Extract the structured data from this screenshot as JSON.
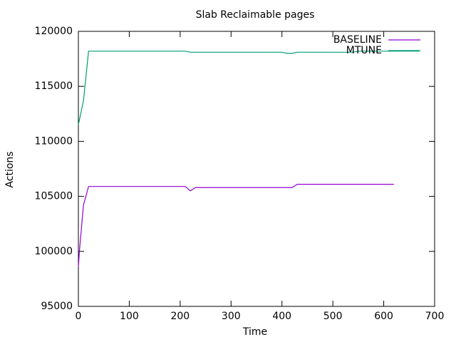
{
  "chart_data": {
    "type": "line",
    "title": "Slab Reclaimable pages",
    "x_label": "Time",
    "y_label": "Actions",
    "series": [
      {
        "name": "BASELINE",
        "color": "#9400d3",
        "x": [
          0,
          2,
          10,
          20,
          210,
          220,
          230,
          420,
          430,
          620
        ],
        "values": [
          98600,
          100000,
          104200,
          105900,
          105900,
          105500,
          105800,
          105800,
          106100,
          106100
        ]
      },
      {
        "name": "MTUNE",
        "color": "#009e73",
        "x": [
          0,
          10,
          20,
          210,
          220,
          400,
          410,
          420,
          430,
          540,
          550,
          670
        ],
        "values": [
          111500,
          113700,
          118200,
          118200,
          118100,
          118100,
          118000,
          118000,
          118100,
          118100,
          118200,
          118200
        ]
      }
    ],
    "xlim": [
      0,
      700
    ],
    "xticks": [
      0,
      100,
      200,
      300,
      400,
      500,
      600,
      700
    ],
    "ylim": [
      95000,
      120000
    ],
    "yticks": [
      95000,
      100000,
      105000,
      110000,
      115000,
      120000
    ],
    "grid": false,
    "legend": "top-right"
  }
}
